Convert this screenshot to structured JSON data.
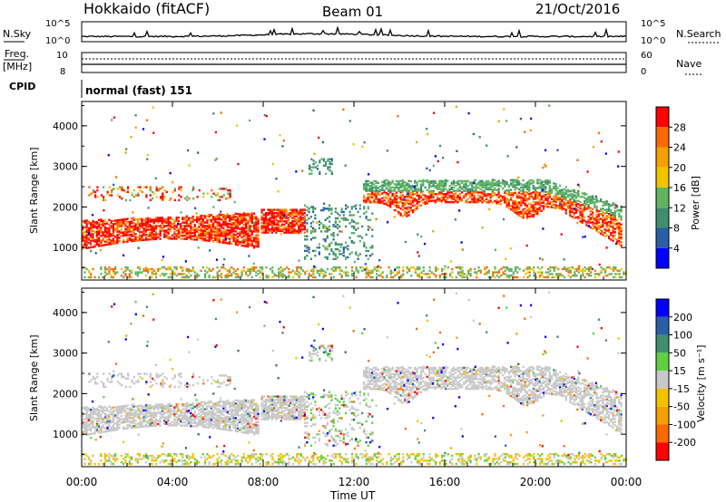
{
  "header": {
    "station": "Hokkaido (fitACF)",
    "beam": "Beam 01",
    "date": "21/Oct/2016"
  },
  "top_panels": {
    "nsky_label": "N.Sky",
    "nsky_ticks": [
      "10^5",
      "10^0"
    ],
    "nsearch_label": "N.Search",
    "nsearch_ticks": [
      "10^5",
      "10^0"
    ],
    "freq_label_1": "Freq.",
    "freq_label_2": "[MHz]",
    "freq_ticks": [
      "10",
      "8"
    ],
    "nave_label": "Nave",
    "nave_ticks": [
      "60",
      "0"
    ],
    "cpid_label": "CPID",
    "cpid_text": "normal (fast) 151"
  },
  "colors": {
    "power_scale": [
      "#0000ff",
      "#2a5fa8",
      "#3f8f6f",
      "#5fb55f",
      "#f2c200",
      "#f5a000",
      "#ff6a00",
      "#ff0000"
    ],
    "velocity_scale": [
      "#ff0000",
      "#ff6a00",
      "#f5a000",
      "#f2c200",
      "#c8c8c8",
      "#5fd03f",
      "#3f8f6f",
      "#2a5fa8",
      "#0000ff"
    ],
    "ground_scatter": "#c8c8c8"
  },
  "chart_data": [
    {
      "type": "heatmap",
      "name": "power",
      "ylabel": "Slant Range [km]",
      "yticks": [
        "1000",
        "2000",
        "3000",
        "4000"
      ],
      "ylim": [
        200,
        4600
      ],
      "xlim_hours": [
        0,
        24
      ],
      "colorbar_label": "Power [dB]",
      "colorbar_ticks": [
        "28",
        "24",
        "20",
        "16",
        "12",
        "8",
        "4"
      ],
      "colorbar_range": [
        0,
        32
      ]
    },
    {
      "type": "heatmap",
      "name": "velocity",
      "ylabel": "Slant Range [km]",
      "yticks": [
        "1000",
        "2000",
        "3000",
        "4000"
      ],
      "ylim": [
        200,
        4600
      ],
      "xlim_hours": [
        0,
        24
      ],
      "colorbar_label": "Velocity [m s⁻¹]",
      "colorbar_ticks": [
        "200",
        "100",
        "50",
        "15",
        "-15",
        "-50",
        "-100",
        "-200"
      ],
      "colorbar_range": [
        -250,
        250
      ]
    }
  ],
  "x_axis": {
    "ticks": [
      "00:00",
      "04:00",
      "08:00",
      "12:00",
      "16:00",
      "20:00",
      "00:00"
    ],
    "label": "Time UT"
  }
}
